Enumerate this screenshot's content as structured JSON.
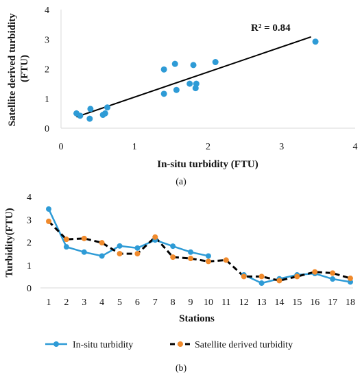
{
  "chart_data": [
    {
      "type": "scatter",
      "panel_label": "(a)",
      "xlabel": "In-situ turbidity (FTU)",
      "ylabel": "Satellite derived turbidity (FTU)",
      "xlim": [
        0,
        4
      ],
      "ylim": [
        0,
        4
      ],
      "xticks": [
        "0",
        "1",
        "2",
        "3",
        "4"
      ],
      "yticks": [
        "0",
        "1",
        "2",
        "3",
        "4"
      ],
      "grid": false,
      "annotation": "R² = 0.84",
      "points": [
        {
          "x": 0.21,
          "y": 0.5
        },
        {
          "x": 0.26,
          "y": 0.42
        },
        {
          "x": 0.4,
          "y": 0.65
        },
        {
          "x": 0.39,
          "y": 0.32
        },
        {
          "x": 0.57,
          "y": 0.45
        },
        {
          "x": 0.6,
          "y": 0.5
        },
        {
          "x": 0.63,
          "y": 0.7
        },
        {
          "x": 1.4,
          "y": 1.16
        },
        {
          "x": 1.4,
          "y": 1.98
        },
        {
          "x": 1.55,
          "y": 2.17
        },
        {
          "x": 1.57,
          "y": 1.29
        },
        {
          "x": 1.75,
          "y": 1.5
        },
        {
          "x": 1.8,
          "y": 2.13
        },
        {
          "x": 1.84,
          "y": 1.5
        },
        {
          "x": 1.83,
          "y": 1.35
        },
        {
          "x": 2.1,
          "y": 2.23
        },
        {
          "x": 3.46,
          "y": 2.92
        }
      ],
      "trendline": {
        "x": [
          0.21,
          3.4
        ],
        "y": [
          0.38,
          3.08
        ]
      }
    },
    {
      "type": "line",
      "panel_label": "(b)",
      "xlabel": "Stations",
      "ylabel": "Turbidity(FTU)",
      "ylim": [
        0,
        4
      ],
      "yticks": [
        "0",
        "1",
        "2",
        "3",
        "4"
      ],
      "grid": false,
      "legend_position": "bottom",
      "categories": [
        "1",
        "2",
        "3",
        "4",
        "5",
        "6",
        "7",
        "8",
        "9",
        "10",
        "11",
        "12",
        "13",
        "14",
        "15",
        "16",
        "17",
        "18"
      ],
      "series": [
        {
          "name": "In-situ turbidity",
          "values": [
            3.46,
            1.8,
            1.57,
            1.4,
            1.84,
            1.75,
            2.1,
            1.83,
            1.57,
            1.4,
            null,
            0.57,
            0.21,
            0.4,
            0.57,
            0.63,
            0.39,
            0.26
          ]
        },
        {
          "name": "Satellite derived turbidity",
          "values": [
            2.92,
            2.13,
            2.17,
            1.98,
            1.5,
            1.5,
            2.23,
            1.35,
            1.29,
            1.16,
            1.22,
            0.5,
            0.5,
            0.32,
            0.5,
            0.7,
            0.65,
            0.42
          ]
        }
      ],
      "colors": {
        "in_situ": "#2E9BD6",
        "satellite_line": "#000000",
        "satellite_marker": "#F08A2C"
      }
    }
  ]
}
